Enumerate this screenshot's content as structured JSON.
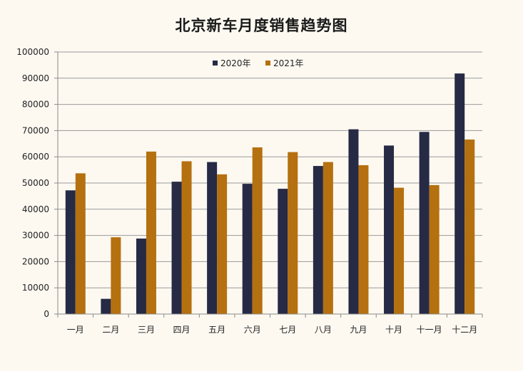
{
  "chart_data": {
    "type": "bar",
    "title": "北京新车月度销售趋势图",
    "xlabel": "",
    "ylabel": "",
    "ylim": [
      0,
      100000
    ],
    "yticks": [
      0,
      10000,
      20000,
      30000,
      40000,
      50000,
      60000,
      70000,
      80000,
      90000,
      100000
    ],
    "grid": true,
    "legend_position": "top-center",
    "categories": [
      "一月",
      "二月",
      "三月",
      "四月",
      "五月",
      "六月",
      "七月",
      "八月",
      "九月",
      "十月",
      "十一月",
      "十二月"
    ],
    "series": [
      {
        "name": "2020年",
        "color": "#262a45",
        "values": [
          47200,
          5800,
          28800,
          50500,
          58000,
          49700,
          47800,
          56500,
          70500,
          64300,
          69500,
          91800
        ]
      },
      {
        "name": "2021年",
        "color": "#b5700f",
        "values": [
          53700,
          29300,
          62000,
          58300,
          53300,
          63600,
          61800,
          58000,
          56800,
          48200,
          49200,
          66600
        ]
      }
    ]
  }
}
